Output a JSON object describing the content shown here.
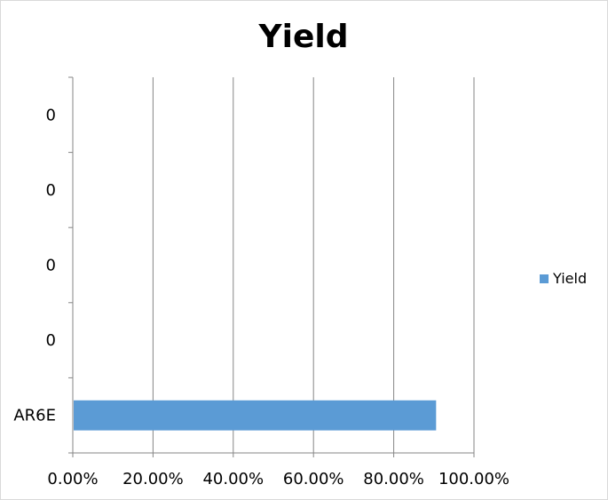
{
  "chart_data": {
    "type": "bar",
    "orientation": "horizontal",
    "title": "Yield",
    "categories": [
      "AR6E",
      "0",
      "0",
      "0",
      "0"
    ],
    "series": [
      {
        "name": "Yield",
        "values": [
          0.9056,
          0,
          0,
          0,
          0
        ],
        "color": "#5b9bd5"
      }
    ],
    "xlim": [
      0,
      1
    ],
    "x_ticks": [
      0,
      0.2,
      0.4,
      0.6,
      0.8,
      1.0
    ],
    "x_tick_labels": [
      "0.00%",
      "20.00%",
      "40.00%",
      "60.00%",
      "80.00%",
      "100.00%"
    ],
    "xlabel": "",
    "ylabel": "",
    "grid": "vertical",
    "legend_position": "right"
  }
}
